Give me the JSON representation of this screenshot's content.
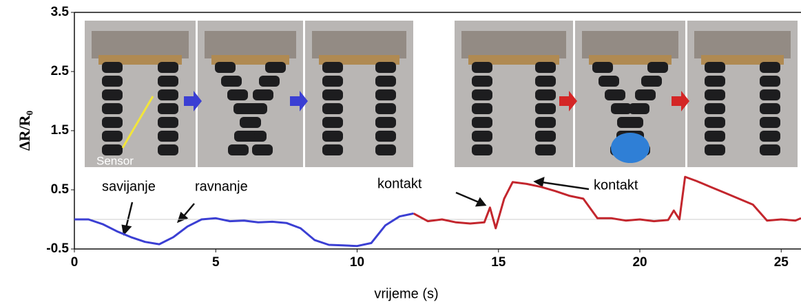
{
  "chart_data": {
    "type": "line",
    "y_label": "ΔR/R₀",
    "x_label": "vrijeme (s)",
    "photo_label": "Sensor",
    "annotations": [
      "savijanje",
      "ravnanje",
      "kontakt",
      "kontakt"
    ],
    "xlim": [
      0,
      25.7
    ],
    "xticks": [
      0,
      5,
      10,
      15,
      20,
      25
    ],
    "ylim": [
      -0.5,
      3.5
    ],
    "yticks": [
      -0.5,
      0.5,
      1.5,
      2.5,
      3.5
    ],
    "series": [
      {
        "color": "#3b3fd3",
        "x": [
          0,
          0.5,
          1,
          1.5,
          2,
          2.5,
          3,
          3.5,
          4,
          4.5,
          5,
          5.5,
          6,
          6.5,
          7,
          7.5,
          8,
          8.5,
          9,
          9.5,
          10,
          10.5,
          11,
          11.5,
          12
        ],
        "values": [
          0,
          0,
          -0.08,
          -0.2,
          -0.3,
          -0.38,
          -0.42,
          -0.3,
          -0.12,
          0,
          0.02,
          -0.03,
          -0.02,
          -0.05,
          -0.04,
          -0.06,
          -0.15,
          -0.35,
          -0.43,
          -0.44,
          -0.45,
          -0.4,
          -0.1,
          0.05,
          0.1
        ]
      },
      {
        "color": "#c3262d",
        "x": [
          12,
          12.5,
          13,
          13.5,
          14,
          14.5,
          14.7,
          14.9,
          15.2,
          15.5,
          16,
          16.5,
          17,
          17.5,
          18,
          18.5,
          19,
          19.5,
          20,
          20.5,
          21,
          21.2,
          21.4,
          21.6,
          22,
          22.5,
          23,
          23.5,
          24,
          24.5,
          25,
          25.5,
          25.7
        ],
        "values": [
          0.1,
          -0.03,
          0,
          -0.05,
          -0.07,
          -0.05,
          0.2,
          -0.15,
          0.35,
          0.63,
          0.6,
          0.55,
          0.48,
          0.4,
          0.35,
          0.02,
          0.02,
          -0.02,
          0,
          -0.03,
          -0.01,
          0.15,
          0,
          0.72,
          0.65,
          0.55,
          0.45,
          0.35,
          0.25,
          -0.02,
          0,
          -0.02,
          0.02
        ]
      }
    ]
  }
}
